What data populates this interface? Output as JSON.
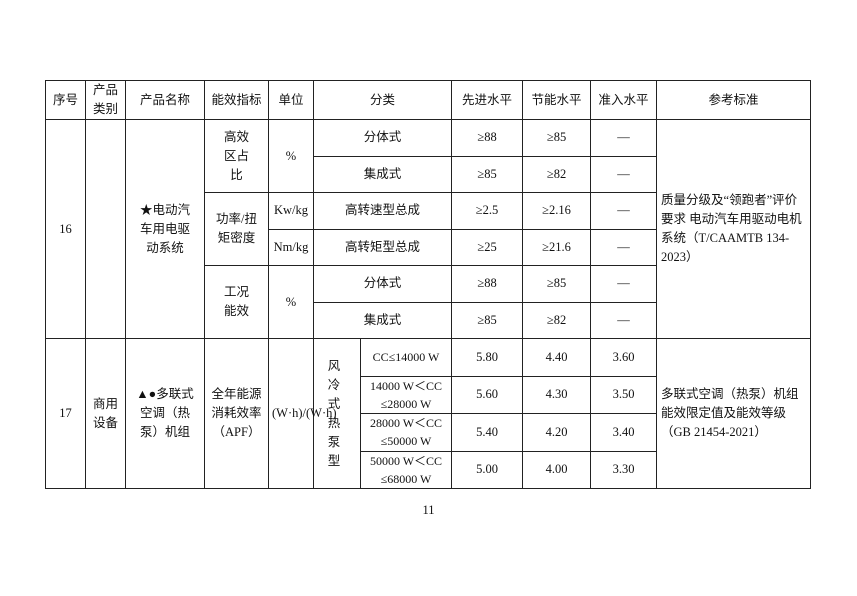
{
  "headers": [
    "序号",
    "产品类别",
    "产品名称",
    "能效指标",
    "单位",
    "分类",
    "先进水平",
    "节能水平",
    "准入水平",
    "参考标准"
  ],
  "row16": {
    "no": "16",
    "category": "",
    "name": "★电动汽车用电驱动系统",
    "ref": "质量分级及“领跑者”评价要求 电动汽车用驱动电机系统（T/CAAMTB 134-2023）",
    "groups": [
      {
        "indicator": "高效区占比",
        "unit": "%",
        "rows": [
          {
            "class": "分体式",
            "adv": "≥88",
            "save": "≥85",
            "entry": "—"
          },
          {
            "class": "集成式",
            "adv": "≥85",
            "save": "≥82",
            "entry": "—"
          }
        ]
      },
      {
        "indicator": "功率/扭矩密度",
        "rows": [
          {
            "unit": "Kw/kg",
            "class": "高转速型总成",
            "adv": "≥2.5",
            "save": "≥2.16",
            "entry": "—"
          },
          {
            "unit": "Nm/kg",
            "class": "高转矩型总成",
            "adv": "≥25",
            "save": "≥21.6",
            "entry": "—"
          }
        ]
      },
      {
        "indicator": "工况能效",
        "unit": "%",
        "rows": [
          {
            "class": "分体式",
            "adv": "≥88",
            "save": "≥85",
            "entry": "—"
          },
          {
            "class": "集成式",
            "adv": "≥85",
            "save": "≥82",
            "entry": "—"
          }
        ]
      }
    ]
  },
  "row17": {
    "no": "17",
    "category": "商用设备",
    "name": "▲●多联式空调（热泵）机组",
    "indicator": "全年能源消耗效率（APF）",
    "unit": "(W·h)/(W·h)",
    "type": "风冷式热泵型",
    "ref": "多联式空调（热泵）机组能效限定值及能效等级（GB 21454-2021）",
    "rows": [
      {
        "class": "CC≤14000 W",
        "adv": "5.80",
        "save": "4.40",
        "entry": "3.60"
      },
      {
        "class": "14000 W＜CC ≤28000 W",
        "adv": "5.60",
        "save": "4.30",
        "entry": "3.50"
      },
      {
        "class": "28000 W＜CC ≤50000 W",
        "adv": "5.40",
        "save": "4.20",
        "entry": "3.40"
      },
      {
        "class": "50000 W＜CC ≤68000 W",
        "adv": "5.00",
        "save": "4.00",
        "entry": "3.30"
      }
    ]
  },
  "page_number": "11"
}
